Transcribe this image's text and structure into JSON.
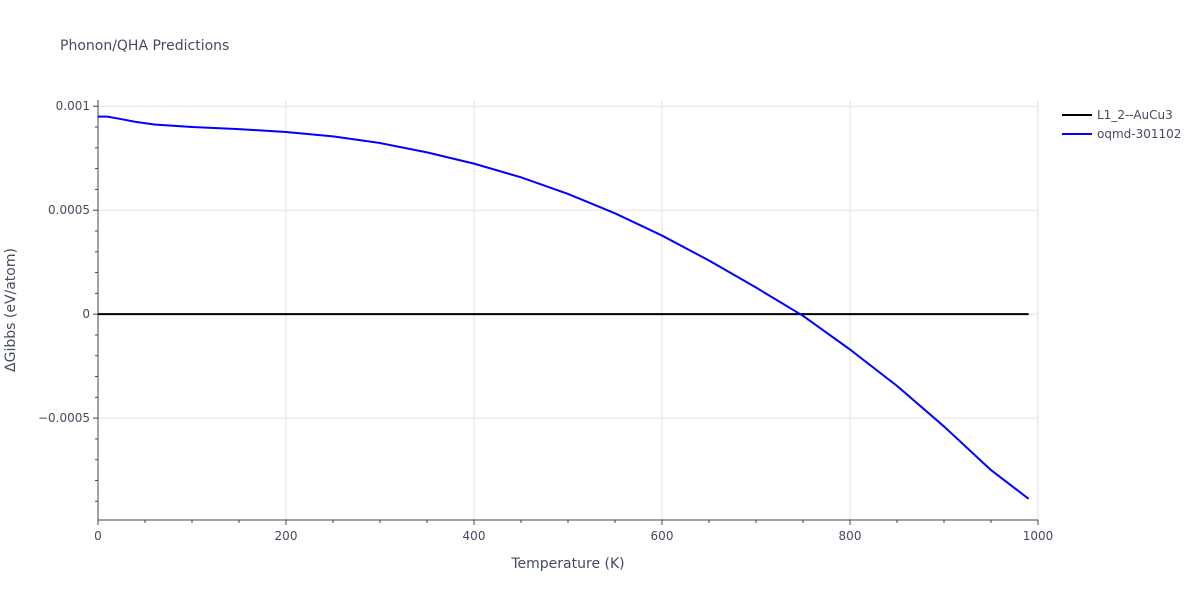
{
  "chart_data": {
    "type": "line",
    "title": "Phonon/QHA Predictions",
    "xlabel": "Temperature (K)",
    "ylabel": "ΔGibbs (eV/atom)",
    "xlim": [
      0,
      1000
    ],
    "ylim": [
      -0.00099,
      0.00103
    ],
    "xticks": [
      0,
      200,
      400,
      600,
      800,
      1000
    ],
    "xtick_labels": [
      "0",
      "200",
      "400",
      "600",
      "800",
      "1000"
    ],
    "yticks": [
      0.001,
      0.0005,
      0,
      -0.0005
    ],
    "ytick_labels": [
      "0.001",
      "0.0005",
      "0",
      "−0.0005"
    ],
    "grid": true,
    "legend_position": "top-right",
    "colors": {
      "L1_2--AuCu3": "#000000",
      "oqmd-301102": "#0000ff"
    },
    "series": [
      {
        "name": "L1_2--AuCu3",
        "x": [
          0,
          990
        ],
        "y": [
          0,
          0
        ]
      },
      {
        "name": "oqmd-301102",
        "x": [
          0,
          10,
          20,
          40,
          60,
          100,
          150,
          200,
          250,
          300,
          350,
          400,
          450,
          500,
          550,
          600,
          650,
          700,
          750,
          800,
          850,
          900,
          950,
          990
        ],
        "y": [
          0.00095,
          0.00095,
          0.000942,
          0.000925,
          0.000912,
          0.0009,
          0.00089,
          0.000876,
          0.000855,
          0.000823,
          0.000778,
          0.000724,
          0.000658,
          0.000578,
          0.000485,
          0.000378,
          0.000258,
          0.000128,
          -8e-06,
          -0.00017,
          -0.000345,
          -0.00054,
          -0.00075,
          -0.000888
        ]
      }
    ]
  }
}
